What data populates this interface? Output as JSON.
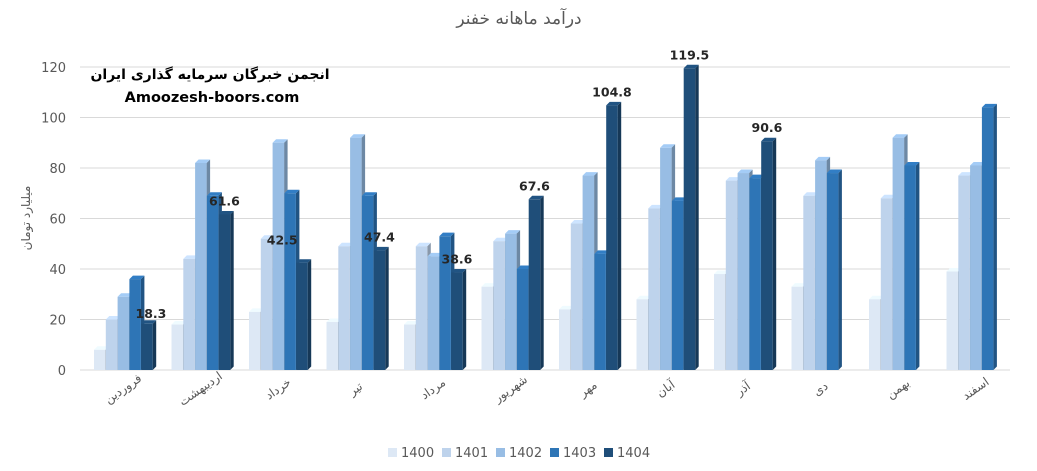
{
  "watermark": {
    "line1": "انجمن خبرگان سرمایه گذاری ایران",
    "line2": "Amoozesh-boors.com"
  },
  "colors": {
    "1400": "#dde8f5",
    "1401": "#bed3ec",
    "1402": "#98bde4",
    "1403": "#2e75b6",
    "1404": "#1f4e79"
  },
  "chart_data": {
    "type": "bar",
    "style": "3d-clustered-column",
    "title": "درآمد ماهانه خفنر",
    "ylabel": "میلیارد تومان",
    "xlabel": "",
    "ylim": [
      0,
      120
    ],
    "yticks": [
      0,
      20,
      40,
      60,
      80,
      100,
      120
    ],
    "grid": true,
    "legend_position": "bottom",
    "categories": [
      "فروردین",
      "اردیبهشت",
      "خرداد",
      "تیر",
      "مرداد",
      "شهریور",
      "مهر",
      "آبان",
      "آذر",
      "دی",
      "بهمن",
      "اسفند"
    ],
    "series": [
      {
        "name": "1400",
        "values": [
          8,
          18,
          23,
          19,
          18,
          33,
          24,
          28,
          38,
          33,
          28,
          39
        ]
      },
      {
        "name": "1401",
        "values": [
          20,
          44,
          52,
          49,
          49,
          51,
          58,
          64,
          75,
          69,
          68,
          77
        ]
      },
      {
        "name": "1402",
        "values": [
          29,
          82,
          90,
          92,
          45,
          54,
          77,
          88,
          78,
          83,
          92,
          81
        ]
      },
      {
        "name": "1403",
        "values": [
          36,
          69,
          70,
          69,
          53,
          40,
          46,
          67,
          76,
          78,
          81,
          104
        ]
      },
      {
        "name": "1404",
        "values": [
          18.3,
          61.6,
          42.5,
          47.4,
          38.6,
          67.6,
          104.8,
          119.5,
          90.6,
          null,
          null,
          null
        ]
      }
    ],
    "data_labels": [
      "18.3",
      "61.6",
      "42.5",
      "47.4",
      "38.6",
      "67.6",
      "104.8",
      "119.5",
      "90.6"
    ]
  }
}
